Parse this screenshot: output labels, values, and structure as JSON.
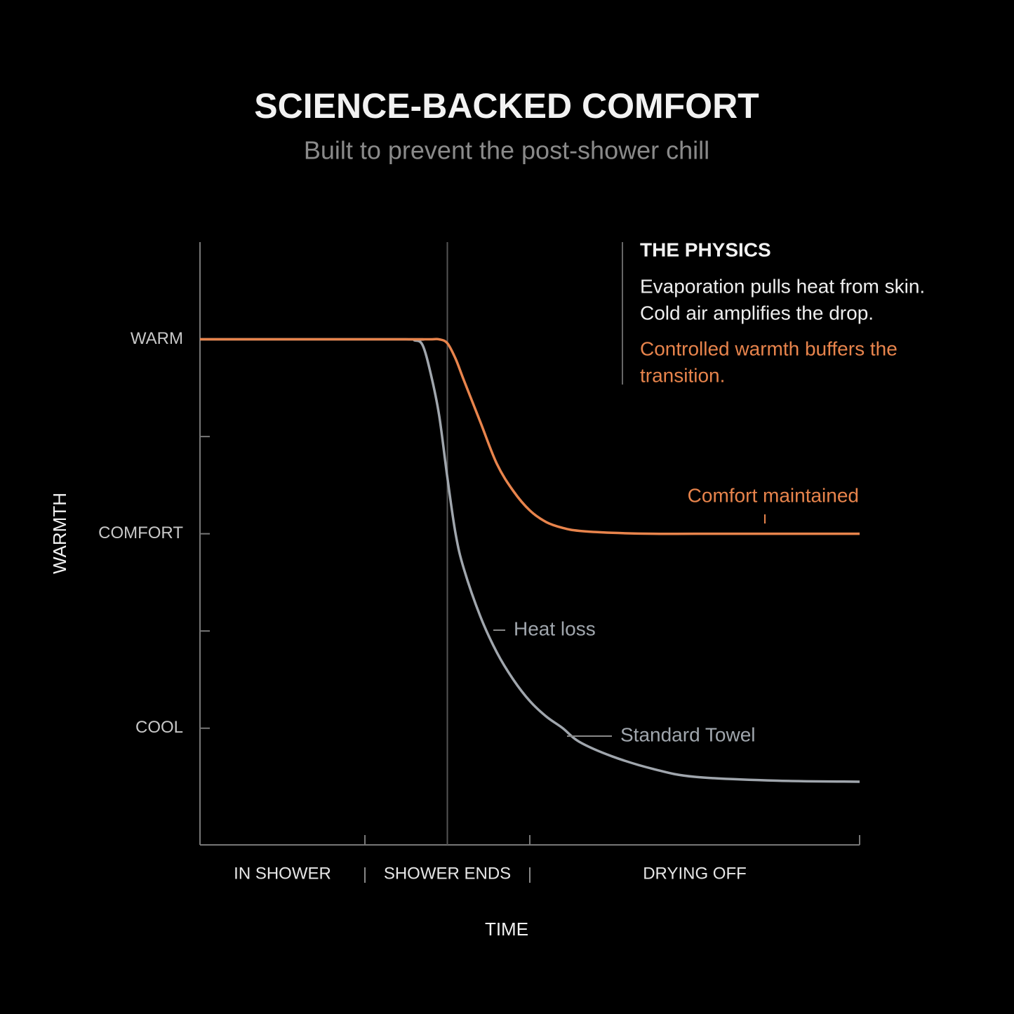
{
  "chart_data": {
    "type": "line",
    "title": "SCIENCE-BACKED COMFORT",
    "subtitle": "Built to prevent the post-shower chill",
    "y_label": "WARMTH",
    "x_label": "TIME",
    "xlim": [
      0,
      8
    ],
    "ylim": [
      0.4,
      3.5
    ],
    "xticks": [
      {
        "value": 2
      },
      {
        "value": 4
      },
      {
        "value": 8
      }
    ],
    "yticks": [
      {
        "value": 3,
        "label": "WARM"
      },
      {
        "value": 2.5
      },
      {
        "value": 2,
        "label": "COMFORT"
      },
      {
        "value": 1.5
      },
      {
        "value": 1,
        "label": "COOL"
      }
    ],
    "grid": false,
    "event_line_x": 3,
    "phases": [
      {
        "label": "IN SHOWER",
        "start": 0,
        "end": 2
      },
      {
        "label": "SHOWER ENDS",
        "start": 2,
        "end": 4
      },
      {
        "label": "DRYING OFF",
        "start": 4,
        "end": 8
      }
    ],
    "x": [
      0,
      2.5,
      2.6,
      2.7,
      2.8,
      2.9,
      3.0,
      3.1,
      3.2,
      3.4,
      3.6,
      3.8,
      4.0,
      4.2,
      4.4,
      4.6,
      5.0,
      5.5,
      6,
      7,
      8
    ],
    "series": [
      {
        "name": "Comfort maintained",
        "color": "#e8844c",
        "values": [
          3,
          3,
          3,
          3,
          3,
          3,
          2.98,
          2.9,
          2.79,
          2.575,
          2.36,
          2.22,
          2.12,
          2.06,
          2.03,
          2.015,
          2.005,
          2,
          2,
          2,
          2
        ]
      },
      {
        "name": "Standard Towel",
        "color": "#a0a6ad",
        "values": [
          3,
          3,
          2.995,
          2.97,
          2.82,
          2.61,
          2.29,
          2.0,
          1.82,
          1.575,
          1.39,
          1.25,
          1.14,
          1.06,
          1.0,
          0.93,
          0.855,
          0.79,
          0.75,
          0.73,
          0.725
        ]
      }
    ],
    "annotations": [
      "Heat loss"
    ],
    "physics": {
      "title": "THE PHYSICS",
      "lines": [
        "Evaporation pulls heat from skin.",
        "Cold air amplifies the drop."
      ],
      "highlight_lines": [
        "Controlled warmth buffers the",
        "transition."
      ]
    }
  }
}
